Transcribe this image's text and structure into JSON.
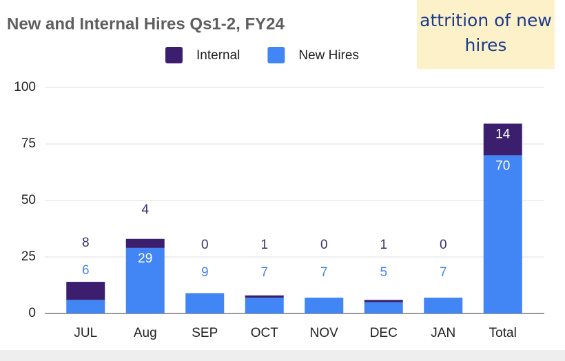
{
  "chart_data": {
    "type": "stacked_bar",
    "title": "New and Internal Hires Qs1-2, FY24",
    "annotation": "attrition of new hires",
    "categories": [
      "JUL",
      "Aug",
      "SEP",
      "OCT",
      "NOV",
      "DEC",
      "JAN",
      "Total"
    ],
    "series": [
      {
        "name": "New Hires",
        "color": "#4285f4",
        "values": [
          6,
          29,
          9,
          7,
          7,
          5,
          7,
          70
        ]
      },
      {
        "name": "Internal",
        "color": "#3b1f6e",
        "values": [
          8,
          4,
          0,
          1,
          0,
          1,
          0,
          14
        ]
      }
    ],
    "legend_order": [
      "Internal",
      "New Hires"
    ],
    "ylim": [
      0,
      100
    ],
    "yticks": [
      0,
      25,
      50,
      75,
      100
    ],
    "grid": true
  }
}
